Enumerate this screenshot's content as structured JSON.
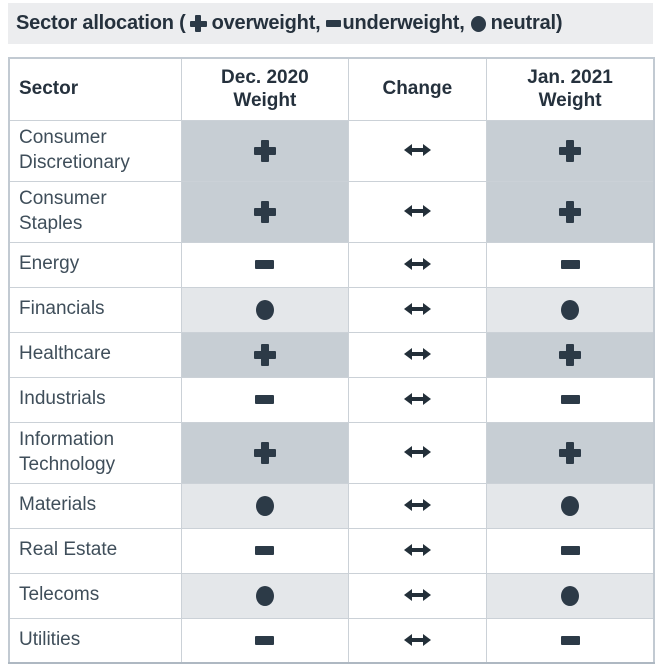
{
  "title": {
    "prefix": "Sector allocation (",
    "overweight_label": "overweight,",
    "underweight_label": "underweight,",
    "neutral_label": "neutral)"
  },
  "icons": {
    "overweight": "plus-icon",
    "underweight": "minus-icon",
    "neutral": "circle-icon",
    "no_change": "left-right-arrow-icon"
  },
  "colors": {
    "symbol": "#2c3a47",
    "overweight_bg": "#c7ced4",
    "neutral_bg": "#e4e7ea",
    "underweight_bg": "#ffffff",
    "titlebar_bg": "#ecedef",
    "border": "#cbd1d7",
    "header_text": "#25313d",
    "row_text": "#3f4e5a"
  },
  "table": {
    "columns": [
      {
        "label": "Sector",
        "lines": [
          "Sector"
        ]
      },
      {
        "label": "Dec. 2020 Weight",
        "lines": [
          "Dec. 2020",
          "Weight"
        ]
      },
      {
        "label": "Change",
        "lines": [
          "Change"
        ]
      },
      {
        "label": "Jan. 2021 Weight",
        "lines": [
          "Jan. 2021",
          "Weight"
        ]
      }
    ],
    "rows": [
      {
        "sector": "Consumer Discretionary",
        "dec": "overweight",
        "change": "no-change",
        "jan": "overweight"
      },
      {
        "sector": "Consumer Staples",
        "dec": "overweight",
        "change": "no-change",
        "jan": "overweight"
      },
      {
        "sector": "Energy",
        "dec": "underweight",
        "change": "no-change",
        "jan": "underweight"
      },
      {
        "sector": "Financials",
        "dec": "neutral",
        "change": "no-change",
        "jan": "neutral"
      },
      {
        "sector": "Healthcare",
        "dec": "overweight",
        "change": "no-change",
        "jan": "overweight"
      },
      {
        "sector": "Industrials",
        "dec": "underweight",
        "change": "no-change",
        "jan": "underweight"
      },
      {
        "sector": "Information Technology",
        "dec": "overweight",
        "change": "no-change",
        "jan": "overweight"
      },
      {
        "sector": "Materials",
        "dec": "neutral",
        "change": "no-change",
        "jan": "neutral"
      },
      {
        "sector": "Real Estate",
        "dec": "underweight",
        "change": "no-change",
        "jan": "underweight"
      },
      {
        "sector": "Telecoms",
        "dec": "neutral",
        "change": "no-change",
        "jan": "neutral"
      },
      {
        "sector": "Utilities",
        "dec": "underweight",
        "change": "no-change",
        "jan": "underweight"
      }
    ]
  },
  "chart_data": {
    "type": "table",
    "title": "Sector allocation (+ overweight, - underweight, ● neutral)",
    "columns": [
      "Sector",
      "Dec. 2020 Weight",
      "Change",
      "Jan. 2021 Weight"
    ],
    "rows": [
      [
        "Consumer Discretionary",
        "overweight",
        "no change",
        "overweight"
      ],
      [
        "Consumer Staples",
        "overweight",
        "no change",
        "overweight"
      ],
      [
        "Energy",
        "underweight",
        "no change",
        "underweight"
      ],
      [
        "Financials",
        "neutral",
        "no change",
        "neutral"
      ],
      [
        "Healthcare",
        "overweight",
        "no change",
        "overweight"
      ],
      [
        "Industrials",
        "underweight",
        "no change",
        "underweight"
      ],
      [
        "Information Technology",
        "overweight",
        "no change",
        "overweight"
      ],
      [
        "Materials",
        "neutral",
        "no change",
        "neutral"
      ],
      [
        "Real Estate",
        "underweight",
        "no change",
        "underweight"
      ],
      [
        "Telecoms",
        "neutral",
        "no change",
        "neutral"
      ],
      [
        "Utilities",
        "underweight",
        "no change",
        "underweight"
      ]
    ]
  }
}
